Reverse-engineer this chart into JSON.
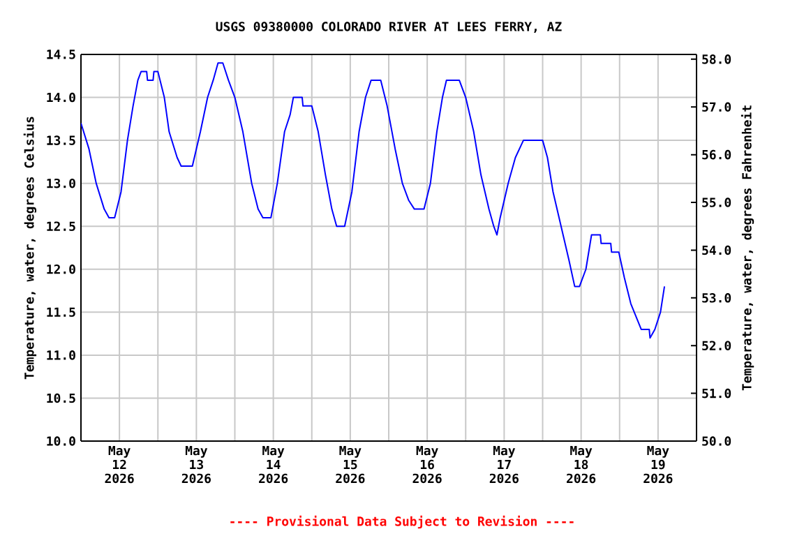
{
  "chart_data": {
    "type": "line",
    "title": "USGS 09380000 COLORADO RIVER AT LEES FERRY, AZ",
    "ylabel": "Temperature, water, degrees Celsius",
    "y2label": "Temperature, water, degrees Fahrenheit",
    "annotations": [
      "---- Provisional Data Subject to Revision ----"
    ],
    "color": "#0000ff",
    "grid": true,
    "xlim": [
      "2026-05-12T00:00",
      "2026-05-20T00:00"
    ],
    "xticks": [
      {
        "value": "2026-05-12T00:00",
        "label": null
      },
      {
        "value": "2026-05-12T12:00",
        "label": "May 12 2026"
      },
      {
        "value": "2026-05-13T00:00",
        "label": null
      },
      {
        "value": "2026-05-13T12:00",
        "label": "May 13 2026"
      },
      {
        "value": "2026-05-14T00:00",
        "label": null
      },
      {
        "value": "2026-05-14T12:00",
        "label": "May 14 2026"
      },
      {
        "value": "2026-05-15T00:00",
        "label": null
      },
      {
        "value": "2026-05-15T12:00",
        "label": "May 15 2026"
      },
      {
        "value": "2026-05-16T00:00",
        "label": null
      },
      {
        "value": "2026-05-16T12:00",
        "label": "May 16 2026"
      },
      {
        "value": "2026-05-17T00:00",
        "label": null
      },
      {
        "value": "2026-05-17T12:00",
        "label": "May 17 2026"
      },
      {
        "value": "2026-05-18T00:00",
        "label": null
      },
      {
        "value": "2026-05-18T12:00",
        "label": "May 18 2026"
      },
      {
        "value": "2026-05-19T00:00",
        "label": null
      },
      {
        "value": "2026-05-19T12:00",
        "label": "May 19 2026"
      }
    ],
    "ylim": [
      10,
      14.5
    ],
    "yticks": [
      {
        "value": 10,
        "label": "10.0"
      },
      {
        "value": 10.5,
        "label": "10.5"
      },
      {
        "value": 11,
        "label": "11.0"
      },
      {
        "value": 11.5,
        "label": "11.5"
      },
      {
        "value": 12,
        "label": "12.0"
      },
      {
        "value": 12.5,
        "label": "12.5"
      },
      {
        "value": 13,
        "label": "13.0"
      },
      {
        "value": 13.5,
        "label": "13.5"
      },
      {
        "value": 14,
        "label": "14.0"
      },
      {
        "value": 14.5,
        "label": "14.5"
      }
    ],
    "y2lim": [
      50,
      58.1
    ],
    "y2ticks": [
      {
        "value": 50,
        "label": "50.0"
      },
      {
        "value": 51,
        "label": "51.0"
      },
      {
        "value": 52,
        "label": "52.0"
      },
      {
        "value": 53,
        "label": "53.0"
      },
      {
        "value": 54,
        "label": "54.0"
      },
      {
        "value": 55,
        "label": "55.0"
      },
      {
        "value": 56,
        "label": "56.0"
      },
      {
        "value": 57,
        "label": "57.0"
      },
      {
        "value": 58,
        "label": "58.0"
      }
    ],
    "x": [
      "2026-05-12T00:00",
      "2026-05-12T02:30",
      "2026-05-12T04:45",
      "2026-05-12T07:15",
      "2026-05-12T08:45",
      "2026-05-12T10:30",
      "2026-05-12T12:30",
      "2026-05-12T14:30",
      "2026-05-12T16:15",
      "2026-05-12T17:45",
      "2026-05-12T18:45",
      "2026-05-12T20:30",
      "2026-05-12T20:45",
      "2026-05-12T22:30",
      "2026-05-12T22:45",
      "2026-05-13T00:00",
      "2026-05-13T02:00",
      "2026-05-13T03:30",
      "2026-05-13T06:00",
      "2026-05-13T07:15",
      "2026-05-13T10:45",
      "2026-05-13T13:15",
      "2026-05-13T15:30",
      "2026-05-13T17:15",
      "2026-05-13T18:45",
      "2026-05-13T20:15",
      "2026-05-13T22:00",
      "2026-05-14T00:00",
      "2026-05-14T02:30",
      "2026-05-14T05:15",
      "2026-05-14T07:15",
      "2026-05-14T08:45",
      "2026-05-14T11:15",
      "2026-05-14T13:15",
      "2026-05-14T15:30",
      "2026-05-14T17:15",
      "2026-05-14T18:15",
      "2026-05-14T21:00",
      "2026-05-14T21:15",
      "2026-05-15T00:00",
      "2026-05-15T02:00",
      "2026-05-15T04:15",
      "2026-05-15T06:15",
      "2026-05-15T07:45",
      "2026-05-15T10:15",
      "2026-05-15T12:30",
      "2026-05-15T14:45",
      "2026-05-15T16:45",
      "2026-05-15T18:30",
      "2026-05-15T21:30",
      "2026-05-15T23:30",
      "2026-05-16T02:00",
      "2026-05-16T04:15",
      "2026-05-16T06:15",
      "2026-05-16T08:00",
      "2026-05-16T11:00",
      "2026-05-16T13:00",
      "2026-05-16T15:00",
      "2026-05-16T16:45",
      "2026-05-16T18:00",
      "2026-05-16T22:00",
      "2026-05-17T00:00",
      "2026-05-17T02:30",
      "2026-05-17T04:45",
      "2026-05-17T07:15",
      "2026-05-17T08:45",
      "2026-05-17T09:45",
      "2026-05-17T10:45",
      "2026-05-17T13:15",
      "2026-05-17T15:30",
      "2026-05-17T18:00",
      "2026-05-18T00:00",
      "2026-05-18T01:30",
      "2026-05-18T03:15",
      "2026-05-18T05:45",
      "2026-05-18T08:15",
      "2026-05-18T10:00",
      "2026-05-18T11:30",
      "2026-05-18T13:30",
      "2026-05-18T15:15",
      "2026-05-18T18:00",
      "2026-05-18T18:15",
      "2026-05-18T21:15",
      "2026-05-18T21:30",
      "2026-05-18T23:45",
      "2026-05-19T01:30",
      "2026-05-19T03:30",
      "2026-05-19T06:45",
      "2026-05-19T09:15",
      "2026-05-19T09:30",
      "2026-05-19T11:00",
      "2026-05-19T12:45",
      "2026-05-19T14:00"
    ],
    "values": [
      13.7,
      13.4,
      13.0,
      12.7,
      12.6,
      12.6,
      12.9,
      13.5,
      13.9,
      14.2,
      14.3,
      14.3,
      14.2,
      14.2,
      14.3,
      14.3,
      14.0,
      13.6,
      13.3,
      13.2,
      13.2,
      13.6,
      14.0,
      14.2,
      14.4,
      14.4,
      14.2,
      14.0,
      13.6,
      13.0,
      12.7,
      12.6,
      12.6,
      13.0,
      13.6,
      13.8,
      14.0,
      14.0,
      13.9,
      13.9,
      13.6,
      13.1,
      12.7,
      12.5,
      12.5,
      12.9,
      13.6,
      14.0,
      14.2,
      14.2,
      13.9,
      13.4,
      13.0,
      12.8,
      12.7,
      12.7,
      13.0,
      13.6,
      14.0,
      14.2,
      14.2,
      14.0,
      13.6,
      13.1,
      12.7,
      12.5,
      12.4,
      12.6,
      13.0,
      13.3,
      13.5,
      13.5,
      13.3,
      12.9,
      12.5,
      12.1,
      11.8,
      11.8,
      12.0,
      12.4,
      12.4,
      12.3,
      12.3,
      12.2,
      12.2,
      11.9,
      11.6,
      11.3,
      11.3,
      11.2,
      11.3,
      11.5,
      11.8
    ]
  }
}
